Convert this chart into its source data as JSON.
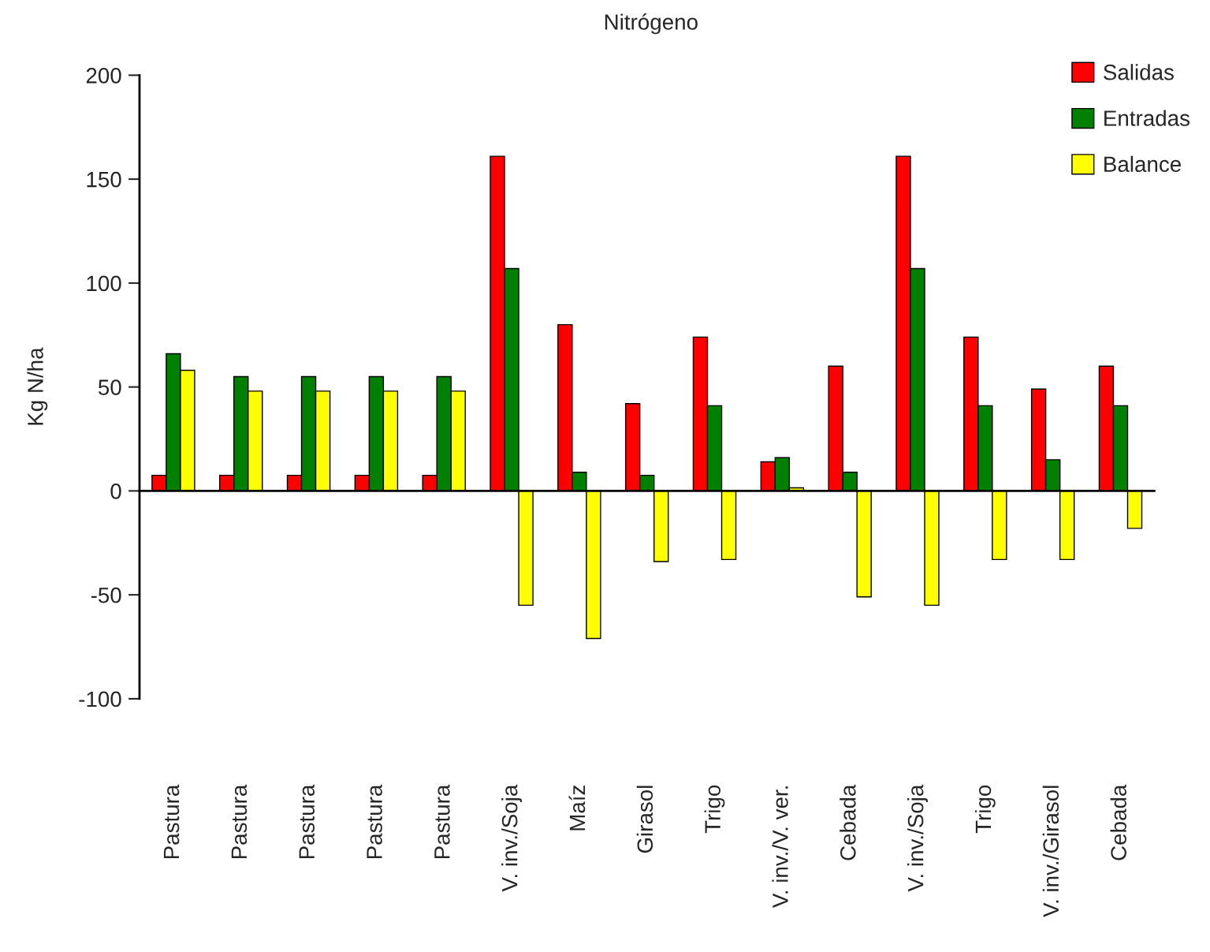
{
  "chart_data": {
    "type": "bar",
    "title": "Nitrógeno",
    "ylabel": "Kg N/ha",
    "categories": [
      "Pastura",
      "Pastura",
      "Pastura",
      "Pastura",
      "Pastura",
      "V. inv./Soja",
      "Maíz",
      "Girasol",
      "Trigo",
      "V. inv./V. ver.",
      "Cebada",
      "V. inv./Soja",
      "Trigo",
      "V. inv./Girasol",
      "Cebada"
    ],
    "series": [
      {
        "name": "Salidas",
        "color": "#ff0000",
        "values": [
          7.5,
          7.5,
          7.5,
          7.5,
          7.5,
          161,
          80,
          42,
          74,
          14,
          60,
          161,
          74,
          49,
          60
        ]
      },
      {
        "name": "Entradas",
        "color": "#008000",
        "values": [
          66,
          55,
          55,
          55,
          55,
          107,
          9,
          7.5,
          41,
          16,
          9,
          107,
          41,
          15,
          41
        ]
      },
      {
        "name": "Balance",
        "color": "#ffff00",
        "values": [
          58,
          48,
          48,
          48,
          48,
          -55,
          -71,
          -34,
          -33,
          1.5,
          -51,
          -55,
          -33,
          -33,
          -18
        ]
      }
    ],
    "ylim": [
      -100,
      200
    ],
    "yticks": [
      {
        "value": -100,
        "label": "-100"
      },
      {
        "value": -50,
        "label": "-50"
      },
      0,
      50,
      100,
      150,
      200
    ],
    "legend": "top right"
  }
}
